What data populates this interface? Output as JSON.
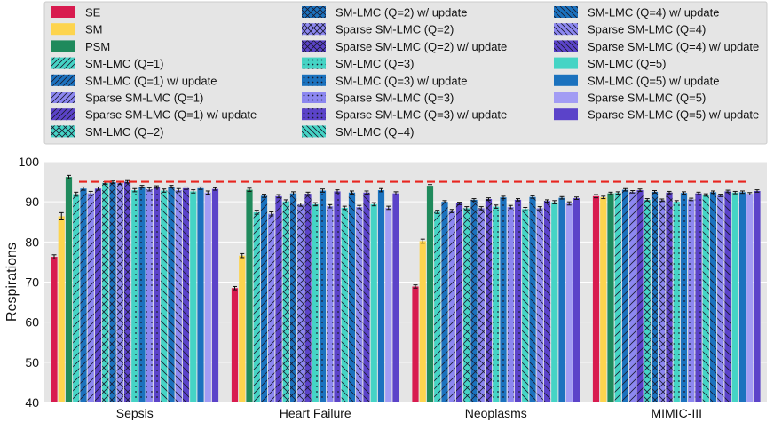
{
  "chart_data": {
    "type": "bar",
    "ylabel": "Respirations",
    "ylim": [
      40,
      100
    ],
    "yticks": [
      40,
      50,
      60,
      70,
      80,
      90,
      100
    ],
    "grid": true,
    "legend_position": "top",
    "reference_line": {
      "value": 95,
      "color": "#e8251f",
      "style": "dashed"
    },
    "categories": [
      "Sepsis",
      "Heart Failure",
      "Neoplasms",
      "MIMIC-III"
    ],
    "series": [
      {
        "name": "SE",
        "color": "#d81b4f",
        "hatch": "",
        "values": [
          76.3,
          68.5,
          68.9,
          91.4
        ],
        "errors": [
          0.5,
          0.4,
          0.4,
          0.4
        ]
      },
      {
        "name": "SM",
        "color": "#fdd44e",
        "hatch": "",
        "values": [
          86.4,
          76.6,
          80.2,
          91.1
        ],
        "errors": [
          0.9,
          0.5,
          0.5,
          0.3
        ]
      },
      {
        "name": "PSM",
        "color": "#1f8a5c",
        "hatch": "",
        "values": [
          96.2,
          93.0,
          94.0,
          92.1
        ],
        "errors": [
          0.4,
          0.4,
          0.3,
          0.3
        ]
      },
      {
        "name": "SM-LMC (Q=1)",
        "color": "#45d4c5",
        "hatch": "/",
        "values": [
          91.9,
          87.4,
          87.5,
          92.2
        ],
        "errors": [
          0.5,
          0.5,
          0.4,
          0.3
        ]
      },
      {
        "name": "SM-LMC (Q=1) w/ update",
        "color": "#1b72be",
        "hatch": "/",
        "values": [
          93.3,
          91.5,
          90.0,
          93.0
        ],
        "errors": [
          0.4,
          0.4,
          0.3,
          0.3
        ]
      },
      {
        "name": "Sparse SM-LMC (Q=1)",
        "color": "#8c87f0",
        "hatch": "/",
        "values": [
          92.1,
          87.0,
          87.7,
          92.5
        ],
        "errors": [
          0.5,
          0.5,
          0.4,
          0.3
        ]
      },
      {
        "name": "Sparse SM-LMC (Q=1) w/ update",
        "color": "#5b43c9",
        "hatch": "/",
        "values": [
          93.3,
          91.4,
          89.6,
          92.9
        ],
        "errors": [
          0.4,
          0.4,
          0.3,
          0.3
        ]
      },
      {
        "name": "SM-LMC (Q=2)",
        "color": "#45d4c5",
        "hatch": "x",
        "values": [
          94.7,
          90.1,
          88.4,
          90.5
        ],
        "errors": [
          0.3,
          0.4,
          0.4,
          0.3
        ]
      },
      {
        "name": "SM-LMC (Q=2) w/ update",
        "color": "#1b72be",
        "hatch": "x",
        "values": [
          94.9,
          92.1,
          90.5,
          92.5
        ],
        "errors": [
          0.3,
          0.4,
          0.3,
          0.3
        ]
      },
      {
        "name": "Sparse SM-LMC (Q=2)",
        "color": "#8c87f0",
        "hatch": "x",
        "values": [
          94.7,
          89.3,
          88.4,
          90.4
        ],
        "errors": [
          0.3,
          0.4,
          0.4,
          0.3
        ]
      },
      {
        "name": "Sparse SM-LMC (Q=2) w/ update",
        "color": "#5b43c9",
        "hatch": "x",
        "values": [
          95.0,
          92.0,
          90.7,
          92.3
        ],
        "errors": [
          0.3,
          0.4,
          0.3,
          0.3
        ]
      },
      {
        "name": "SM-LMC (Q=3)",
        "color": "#45d4c5",
        "hatch": ".",
        "values": [
          92.9,
          89.4,
          88.8,
          90.0
        ],
        "errors": [
          0.4,
          0.4,
          0.4,
          0.3
        ]
      },
      {
        "name": "SM-LMC (Q=3) w/ update",
        "color": "#1b72be",
        "hatch": ".",
        "values": [
          93.8,
          92.8,
          91.1,
          92.2
        ],
        "errors": [
          0.3,
          0.4,
          0.3,
          0.3
        ]
      },
      {
        "name": "Sparse SM-LMC (Q=3)",
        "color": "#8c87f0",
        "hatch": ".",
        "values": [
          93.1,
          88.9,
          88.7,
          90.6
        ],
        "errors": [
          0.4,
          0.4,
          0.4,
          0.3
        ]
      },
      {
        "name": "Sparse SM-LMC (Q=3) w/ update",
        "color": "#5b43c9",
        "hatch": ".",
        "values": [
          93.7,
          92.6,
          90.5,
          92.1
        ],
        "errors": [
          0.3,
          0.4,
          0.3,
          0.3
        ]
      },
      {
        "name": "SM-LMC (Q=4)",
        "color": "#45d4c5",
        "hatch": "\\",
        "values": [
          92.8,
          88.5,
          88.2,
          91.7
        ],
        "errors": [
          0.4,
          0.4,
          0.4,
          0.3
        ]
      },
      {
        "name": "SM-LMC (Q=4) w/ update",
        "color": "#1b72be",
        "hatch": "\\",
        "values": [
          93.8,
          92.3,
          91.2,
          92.4
        ],
        "errors": [
          0.3,
          0.4,
          0.3,
          0.3
        ]
      },
      {
        "name": "Sparse SM-LMC (Q=4)",
        "color": "#8c87f0",
        "hatch": "\\",
        "values": [
          92.9,
          88.7,
          88.4,
          91.6
        ],
        "errors": [
          0.4,
          0.4,
          0.4,
          0.3
        ]
      },
      {
        "name": "Sparse SM-LMC (Q=4) w/ update",
        "color": "#5b43c9",
        "hatch": "\\",
        "values": [
          93.4,
          92.3,
          90.2,
          92.6
        ],
        "errors": [
          0.3,
          0.4,
          0.3,
          0.3
        ]
      },
      {
        "name": "SM-LMC (Q=5)",
        "color": "#45d4c5",
        "hatch": "",
        "values": [
          92.6,
          89.4,
          89.9,
          92.3
        ],
        "errors": [
          0.4,
          0.4,
          0.4,
          0.3
        ]
      },
      {
        "name": "SM-LMC (Q=5) w/ update",
        "color": "#1b72be",
        "hatch": "",
        "values": [
          93.4,
          92.9,
          91.0,
          92.4
        ],
        "errors": [
          0.3,
          0.4,
          0.3,
          0.3
        ]
      },
      {
        "name": "Sparse SM-LMC (Q=5)",
        "color": "#a29cf4",
        "hatch": "",
        "values": [
          92.3,
          88.5,
          89.6,
          92.0
        ],
        "errors": [
          0.4,
          0.4,
          0.4,
          0.3
        ]
      },
      {
        "name": "Sparse SM-LMC (Q=5) w/ update",
        "color": "#5b43c9",
        "hatch": "",
        "values": [
          93.2,
          92.1,
          90.9,
          92.7
        ],
        "errors": [
          0.3,
          0.4,
          0.3,
          0.3
        ]
      }
    ]
  }
}
